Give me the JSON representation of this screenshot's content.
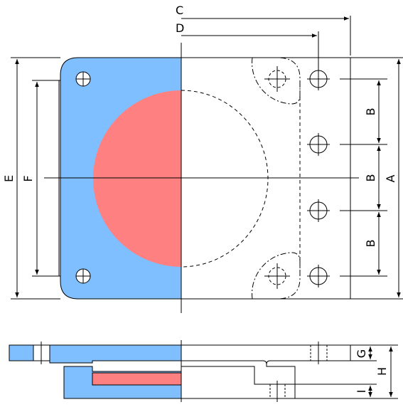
{
  "labels": {
    "A": "A",
    "B1": "B",
    "B2": "B",
    "B3": "B",
    "C": "C",
    "D": "D",
    "E": "E",
    "F": "F",
    "G": "G",
    "H": "H",
    "I": "I"
  },
  "colors": {
    "plate": "#7fbfff",
    "elastomer": "#ff8080",
    "line": "#000000",
    "background": "#ffffff"
  }
}
